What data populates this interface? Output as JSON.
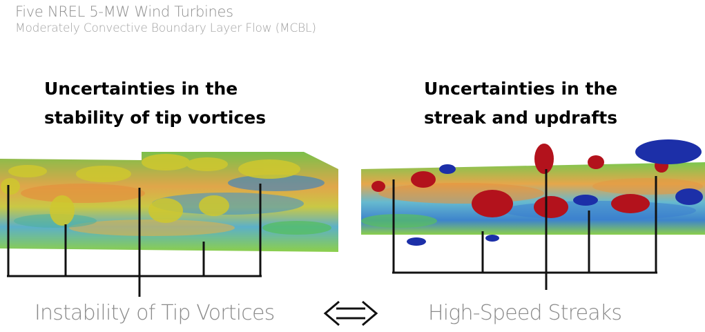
{
  "header": {
    "title": "Five NREL 5-MW Wind Turbines",
    "subtitle": "Moderately Convective Boundary Layer Flow (MCBL)"
  },
  "annotations": {
    "left": [
      "Uncertainties in the",
      "stability of tip vortices"
    ],
    "right": [
      "Uncertainties in the",
      "streak and updrafts"
    ]
  },
  "captions": {
    "left": "Instability of Tip Vortices",
    "right": "High-Speed Streaks"
  },
  "arrow_icon": "double-headed-arrow",
  "colors": {
    "title": "#8e8e8e",
    "caption": "#8a8a8a",
    "bracket": "#111111",
    "positive_structure": "#b3121c",
    "negative_structure": "#1c2fa8",
    "vortex_iso": "#c9c22a"
  }
}
